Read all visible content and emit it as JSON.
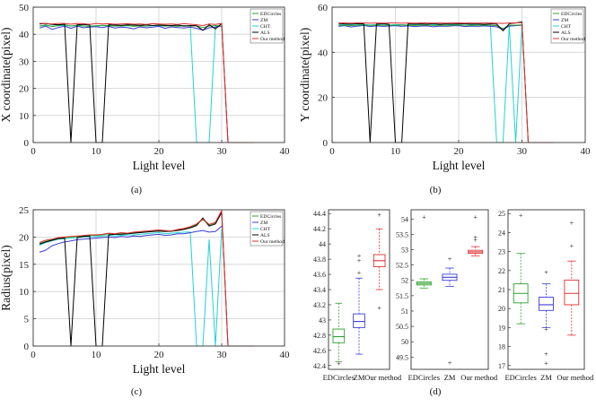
{
  "colors": {
    "EDCircles": "#2ca02c",
    "ZM": "#3b3bd6",
    "CHT": "#22d3d3",
    "ALS": "#000000",
    "Our method": "#e03030"
  },
  "chart_data": [
    {
      "type": "line",
      "caption": "(a)",
      "xlabel": "Light level",
      "ylabel": "X coordinate(pixel)",
      "xlim": [
        0,
        40
      ],
      "ylim": [
        0,
        50
      ],
      "xticks": [
        "0",
        "10",
        "20",
        "30",
        "40"
      ],
      "yticks": [
        "0",
        "10",
        "20",
        "30",
        "40",
        "50"
      ],
      "grid": true,
      "legend": "top-right",
      "legend_entries": [
        "EDCircles",
        "ZM",
        "CHT",
        "ALS",
        "Our method"
      ],
      "x": [
        1,
        2,
        3,
        4,
        5,
        6,
        7,
        8,
        9,
        10,
        11,
        12,
        13,
        14,
        15,
        16,
        17,
        18,
        19,
        20,
        21,
        22,
        23,
        24,
        25,
        26,
        27,
        28,
        29,
        30,
        31,
        32,
        33,
        34,
        35
      ],
      "series": [
        {
          "name": "EDCircles",
          "values": [
            43,
            43.5,
            42.8,
            43.2,
            43.6,
            43,
            43.4,
            43,
            42.9,
            43.1,
            43.3,
            43.2,
            43,
            43.1,
            43.2,
            42.9,
            43.1,
            43,
            43.2,
            43.3,
            43,
            43.1,
            42.9,
            43.2,
            43,
            43.1,
            42.5,
            43,
            43.2,
            43,
            null,
            null,
            null,
            null,
            null
          ]
        },
        {
          "name": "ZM",
          "values": [
            42.3,
            43,
            41.8,
            42.5,
            43,
            42.2,
            43,
            42.4,
            42.6,
            42.8,
            42.5,
            42.9,
            42.3,
            42.6,
            42.5,
            42,
            42.7,
            42.4,
            42.6,
            42.9,
            42.2,
            42.7,
            42.5,
            42.3,
            42.6,
            42.2,
            41.5,
            42.4,
            42.6,
            43,
            null,
            null,
            null,
            null,
            null
          ]
        },
        {
          "name": "CHT",
          "values": [
            43,
            43.2,
            43,
            43.1,
            43.3,
            43,
            43.2,
            43,
            43.1,
            43,
            43.2,
            43,
            43.1,
            43,
            43.2,
            43,
            43.1,
            43,
            43.2,
            43.1,
            43,
            43.2,
            43.1,
            43,
            43,
            0,
            0,
            0,
            43,
            43,
            null,
            null,
            null,
            null,
            null
          ]
        },
        {
          "name": "ALS",
          "values": [
            43.8,
            44,
            43.6,
            43.5,
            43.7,
            0,
            43.5,
            43.6,
            43.4,
            0,
            0,
            43.5,
            43.4,
            43.3,
            43.5,
            43.4,
            43.3,
            43.5,
            43.2,
            43.4,
            43.3,
            43.2,
            43.4,
            43,
            43.2,
            43.1,
            41.5,
            43.5,
            42,
            44,
            0,
            0,
            0,
            0,
            0
          ]
        },
        {
          "name": "Our method",
          "values": [
            44,
            44,
            43.8,
            44,
            44,
            43.7,
            44,
            43.9,
            43.6,
            44,
            43.8,
            43.9,
            43.7,
            43.8,
            43.9,
            43.7,
            43.8,
            43.6,
            43.9,
            43.8,
            43.7,
            43.8,
            43.6,
            43.9,
            43.7,
            43.5,
            43.2,
            43.8,
            43.6,
            44,
            0,
            0,
            0,
            0,
            0
          ]
        }
      ]
    },
    {
      "type": "line",
      "caption": "(b)",
      "xlabel": "Light level",
      "ylabel": "Y coordinate(pixel)",
      "xlim": [
        0,
        40
      ],
      "ylim": [
        0,
        60
      ],
      "xticks": [
        "0",
        "10",
        "20",
        "30",
        "40"
      ],
      "yticks": [
        "0",
        "20",
        "40",
        "60"
      ],
      "grid": true,
      "legend": "top-right",
      "legend_entries": [
        "EDCircles",
        "ZM",
        "CHT",
        "ALS",
        "Our method"
      ],
      "x": [
        1,
        2,
        3,
        4,
        5,
        6,
        7,
        8,
        9,
        10,
        11,
        12,
        13,
        14,
        15,
        16,
        17,
        18,
        19,
        20,
        21,
        22,
        23,
        24,
        25,
        26,
        27,
        28,
        29,
        30,
        31,
        32,
        33,
        34,
        35
      ],
      "series": [
        {
          "name": "EDCircles",
          "values": [
            52,
            52,
            51.8,
            52,
            52.1,
            51.9,
            52,
            52,
            51.9,
            52,
            52.1,
            52,
            51.9,
            52,
            52.1,
            51.9,
            52,
            52,
            51.9,
            52.1,
            52,
            51.9,
            52,
            52.1,
            52,
            51.8,
            50.5,
            52,
            52,
            52.2,
            null,
            null,
            null,
            null,
            null
          ]
        },
        {
          "name": "ZM",
          "values": [
            51.5,
            51.8,
            51.2,
            51.6,
            51.9,
            51.4,
            51.7,
            51.5,
            51.6,
            51.8,
            51.5,
            51.7,
            51.4,
            51.6,
            51.7,
            51.3,
            51.6,
            51.5,
            51.7,
            51.8,
            51.4,
            51.6,
            51.5,
            51.7,
            51.5,
            51.3,
            50.2,
            51.6,
            51.8,
            52,
            null,
            null,
            null,
            null,
            null
          ]
        },
        {
          "name": "CHT",
          "values": [
            52.2,
            52.3,
            52.1,
            52.2,
            52.4,
            52.1,
            52.3,
            52.2,
            52.1,
            52.3,
            52.2,
            52.1,
            52.3,
            52.2,
            52.1,
            52.3,
            52.2,
            52.1,
            52.3,
            52.2,
            52.1,
            52.3,
            52.2,
            52.1,
            52.2,
            0,
            0,
            52.1,
            0,
            52.3,
            null,
            null,
            null,
            null,
            null
          ]
        },
        {
          "name": "ALS",
          "values": [
            52.8,
            52.6,
            52.5,
            52.7,
            52.6,
            0,
            52.5,
            52.7,
            52.4,
            0,
            0,
            52.6,
            52.5,
            52.6,
            52.5,
            52.7,
            52.4,
            52.6,
            52.5,
            52.6,
            52.7,
            52.5,
            52.6,
            52.4,
            52.6,
            52.5,
            49.5,
            52.7,
            53,
            53.5,
            0,
            0,
            0,
            0,
            0
          ]
        },
        {
          "name": "Our method",
          "values": [
            53,
            53,
            52.9,
            53,
            53,
            52.9,
            53,
            52.9,
            53,
            53,
            52.9,
            53,
            52.9,
            53,
            53,
            52.9,
            53,
            52.9,
            53,
            53,
            52.9,
            53,
            52.9,
            53,
            53,
            52.9,
            52.8,
            53,
            53,
            53.2,
            0,
            0,
            0,
            0,
            0
          ]
        }
      ]
    },
    {
      "type": "line",
      "caption": "(c)",
      "xlabel": "Light level",
      "ylabel": "Radius(pixel)",
      "xlim": [
        0,
        40
      ],
      "ylim": [
        0,
        25
      ],
      "xticks": [
        "0",
        "10",
        "20",
        "30",
        "40"
      ],
      "yticks": [
        "0",
        "5",
        "10",
        "15",
        "20",
        "25"
      ],
      "grid": true,
      "legend": "top-right",
      "legend_entries": [
        "EDCircles",
        "ZM",
        "CHT",
        "ALS",
        "Our method"
      ],
      "x": [
        1,
        2,
        3,
        4,
        5,
        6,
        7,
        8,
        9,
        10,
        11,
        12,
        13,
        14,
        15,
        16,
        17,
        18,
        19,
        20,
        21,
        22,
        23,
        24,
        25,
        26,
        27,
        28,
        29,
        30,
        31,
        32,
        33,
        34,
        35
      ],
      "series": [
        {
          "name": "EDCircles",
          "values": [
            18.8,
            19.2,
            19.5,
            19.8,
            19.9,
            20,
            20.1,
            20.2,
            20.3,
            20.3,
            20.4,
            20.6,
            20.5,
            20.7,
            20.6,
            20.8,
            20.9,
            21,
            21.1,
            21.2,
            21.1,
            21,
            21.3,
            21.5,
            21.8,
            22.3,
            23.2,
            22.2,
            22.6,
            24.8,
            null,
            null,
            null,
            null,
            null
          ]
        },
        {
          "name": "ZM",
          "values": [
            17.2,
            17.6,
            18.4,
            18.8,
            19.1,
            19.3,
            19.5,
            19.6,
            19.7,
            19.8,
            19.9,
            20,
            19.9,
            20.1,
            20,
            20.2,
            20.1,
            20.3,
            20.4,
            20.5,
            20.3,
            20.4,
            20.6,
            20.6,
            20.8,
            21,
            21.2,
            20.9,
            21,
            22,
            null,
            null,
            null,
            null,
            null
          ]
        },
        {
          "name": "CHT",
          "values": [
            18.5,
            19,
            19.3,
            19.6,
            19.7,
            19.8,
            19.9,
            20,
            20,
            20.1,
            20.2,
            20.3,
            20.2,
            20.3,
            20.4,
            20.4,
            20.5,
            20.6,
            20.7,
            20.8,
            20.6,
            20.7,
            20.8,
            20.9,
            20.9,
            0,
            0,
            19.5,
            0,
            21.5,
            null,
            null,
            null,
            null,
            null
          ]
        },
        {
          "name": "ALS",
          "values": [
            18.7,
            19.1,
            19.4,
            19.7,
            19.8,
            0,
            19.9,
            20.1,
            20.2,
            0,
            0,
            20.4,
            20.5,
            20.5,
            20.6,
            20.7,
            20.8,
            20.9,
            21,
            21.1,
            21,
            21.1,
            21.2,
            21.4,
            21.7,
            22.1,
            23.5,
            22,
            22.4,
            24.5,
            0,
            0,
            0,
            0,
            0
          ]
        },
        {
          "name": "Our method",
          "values": [
            19,
            19.4,
            19.6,
            19.9,
            20,
            20.1,
            20.2,
            20.3,
            20.4,
            20.4,
            20.5,
            20.7,
            20.6,
            20.8,
            20.7,
            20.9,
            21,
            21.1,
            21.2,
            21.3,
            21.2,
            21.1,
            21.4,
            21.6,
            21.9,
            22.4,
            23.3,
            22.3,
            22.7,
            24.9,
            0,
            0,
            0,
            0,
            0
          ]
        }
      ]
    },
    {
      "type": "box",
      "caption": "(d)",
      "categories": [
        "EDCircles",
        "ZM",
        "Our method"
      ],
      "panels": [
        {
          "ylim": [
            42.35,
            44.45
          ],
          "yticks": [
            "42.4",
            "42.6",
            "42.8",
            "43",
            "43.2",
            "43.4",
            "43.6",
            "43.8",
            "44",
            "44.2",
            "44.4"
          ],
          "boxes": [
            {
              "min": 42.45,
              "q1": 42.7,
              "median": 42.78,
              "q3": 42.88,
              "max": 43.22,
              "outliers": [
                42.42
              ]
            },
            {
              "min": 42.55,
              "q1": 42.9,
              "median": 42.98,
              "q3": 43.08,
              "max": 43.55,
              "outliers": [
                43.62,
                43.78,
                43.84
              ]
            },
            {
              "min": 43.4,
              "q1": 43.7,
              "median": 43.78,
              "q3": 43.86,
              "max": 44.2,
              "outliers": [
                44.38,
                43.15
              ]
            }
          ]
        },
        {
          "ylim": [
            49.1,
            54.3
          ],
          "yticks": [
            "49.5",
            "50",
            "50.5",
            "51",
            "51.5",
            "52",
            "52.5",
            "53",
            "53.5",
            "54"
          ],
          "boxes": [
            {
              "min": 51.75,
              "q1": 51.85,
              "median": 51.9,
              "q3": 51.95,
              "max": 52.05,
              "outliers": [
                54.05
              ]
            },
            {
              "min": 51.8,
              "q1": 52.0,
              "median": 52.1,
              "q3": 52.2,
              "max": 52.4,
              "outliers": [
                49.3,
                52.7
              ]
            },
            {
              "min": 52.8,
              "q1": 52.88,
              "median": 52.93,
              "q3": 52.98,
              "max": 53.1,
              "outliers": [
                53.3,
                53.4,
                54.05
              ]
            }
          ]
        },
        {
          "ylim": [
            16.8,
            25.2
          ],
          "yticks": [
            "17",
            "18",
            "19",
            "20",
            "21",
            "22",
            "23",
            "24",
            "25"
          ],
          "boxes": [
            {
              "min": 19.2,
              "q1": 20.3,
              "median": 20.8,
              "q3": 21.3,
              "max": 22.9,
              "outliers": [
                24.9
              ]
            },
            {
              "min": 19.0,
              "q1": 19.9,
              "median": 20.2,
              "q3": 20.6,
              "max": 21.3,
              "outliers": [
                18.9,
                17.6,
                17.1,
                21.9
              ]
            },
            {
              "min": 18.6,
              "q1": 20.2,
              "median": 20.8,
              "q3": 21.5,
              "max": 22.5,
              "outliers": [
                23.3,
                24.5
              ]
            }
          ]
        }
      ]
    }
  ]
}
